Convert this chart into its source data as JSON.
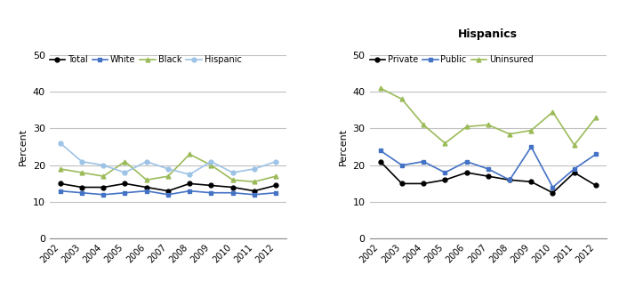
{
  "years": [
    2002,
    2003,
    2004,
    2005,
    2006,
    2007,
    2008,
    2009,
    2010,
    2011,
    2012
  ],
  "left": {
    "Total": [
      15,
      14,
      14,
      15,
      14,
      13,
      15,
      14.5,
      14,
      13,
      14.5
    ],
    "White": [
      13,
      12.5,
      12,
      12.5,
      13,
      12,
      13,
      12.5,
      12.5,
      12,
      12.5
    ],
    "Black": [
      19,
      18,
      17,
      21,
      16,
      17,
      23,
      20,
      16,
      15.5,
      17
    ],
    "Hispanic": [
      26,
      21,
      20,
      18,
      21,
      19,
      17.5,
      21,
      18,
      19,
      21
    ]
  },
  "right": {
    "Private": [
      21,
      15,
      15,
      16,
      18,
      17,
      16,
      15.5,
      12.5,
      18,
      14.5
    ],
    "Public": [
      24,
      20,
      21,
      18,
      21,
      19,
      16,
      25,
      14,
      19,
      23
    ],
    "Uninsured": [
      41,
      38,
      31,
      26,
      30.5,
      31,
      28.5,
      29.5,
      34.5,
      25.5,
      33
    ]
  },
  "left_series_styles": {
    "Total": {
      "color": "#000000",
      "marker": "o",
      "linestyle": "-"
    },
    "White": {
      "color": "#4472C4",
      "marker": "s",
      "linestyle": "-"
    },
    "Black": {
      "color": "#9BBB59",
      "marker": "^",
      "linestyle": "-"
    },
    "Hispanic": {
      "color": "#9DC3E6",
      "marker": "o",
      "linestyle": "-"
    }
  },
  "right_series_styles": {
    "Private": {
      "color": "#000000",
      "marker": "o",
      "linestyle": "-"
    },
    "Public": {
      "color": "#4472C4",
      "marker": "s",
      "linestyle": "-"
    },
    "Uninsured": {
      "color": "#9BBB59",
      "marker": "^",
      "linestyle": "-"
    }
  },
  "ylabel": "Percent",
  "ylim": [
    0,
    50
  ],
  "yticks": [
    0,
    10,
    20,
    30,
    40,
    50
  ],
  "right_title": "Hispanics",
  "background_color": "#FFFFFF",
  "grid_color": "#C0C0C0"
}
